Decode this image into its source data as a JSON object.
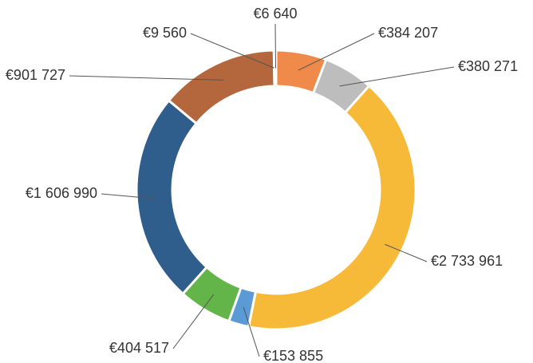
{
  "chart_data": {
    "type": "donut",
    "categories": [
      null,
      null,
      null,
      null,
      null,
      null,
      null,
      null,
      null
    ],
    "values": [
      384207,
      380271,
      2733961,
      153855,
      404517,
      1606990,
      901727,
      9560,
      6640
    ],
    "value_labels": [
      "€384 207",
      "€380 271",
      "€2 733 961",
      "€153 855",
      "€404 517",
      "€1 606 990",
      "€901 727",
      "€9 560",
      "€6 640"
    ],
    "colors": [
      "#f08a4b",
      "#bdbdbd",
      "#f6ba38",
      "#5b9bd5",
      "#63b54a",
      "#2f5e8c",
      "#b4673c",
      "#8a9bb0",
      "#4472c4"
    ]
  }
}
